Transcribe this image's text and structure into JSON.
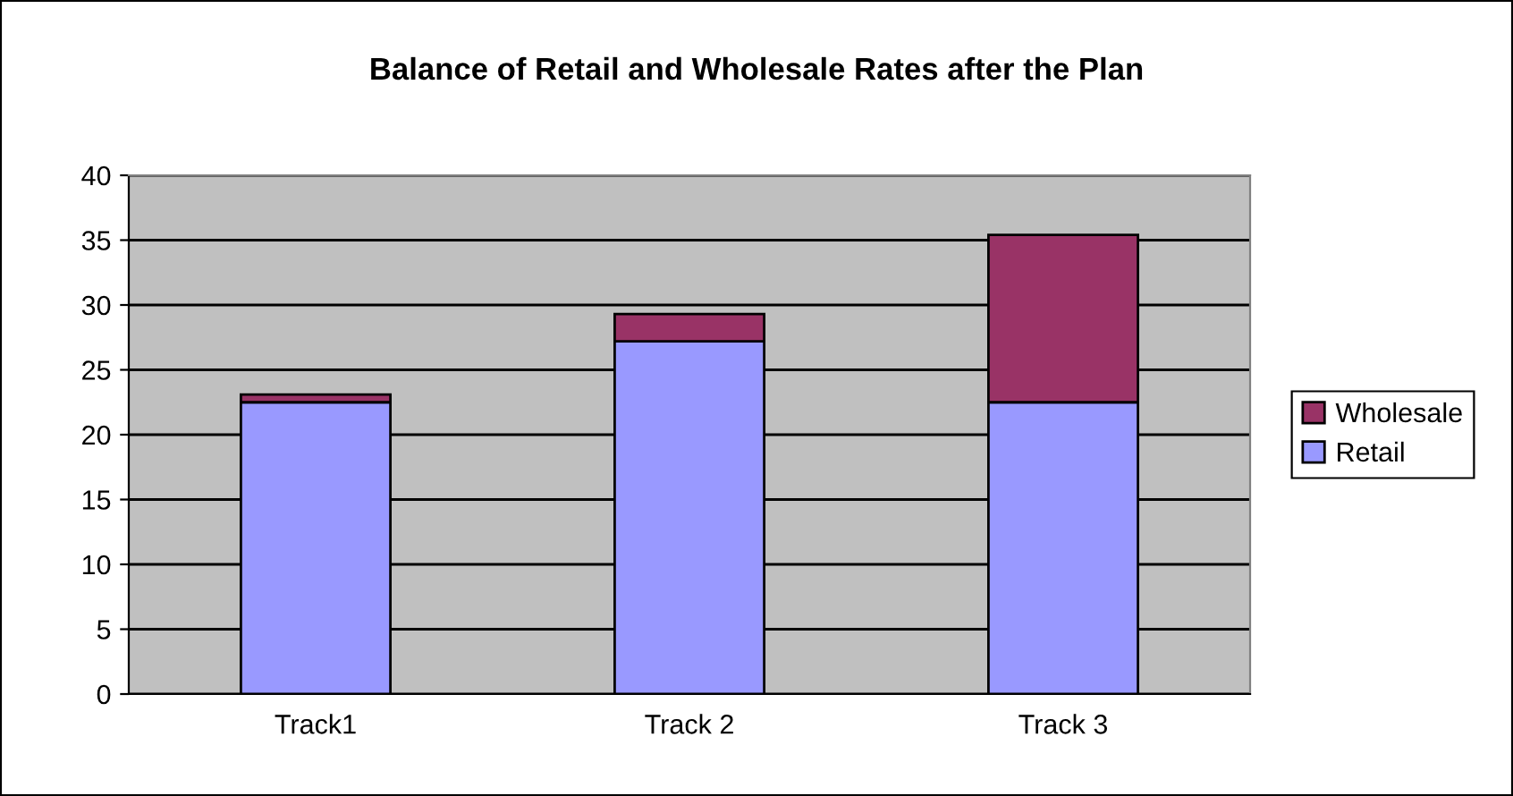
{
  "chart_data": {
    "type": "bar",
    "title": "Balance of Retail and Wholesale Rates after the Plan",
    "categories": [
      "Track1",
      "Track 2",
      "Track 3"
    ],
    "stacked": true,
    "series": [
      {
        "name": "Retail",
        "color": "#9999ff",
        "values": [
          22.5,
          27.2,
          22.5
        ]
      },
      {
        "name": "Wholesale",
        "color": "#993366",
        "values": [
          0.6,
          2.1,
          12.9
        ]
      }
    ],
    "ylim": [
      0,
      40
    ],
    "yticks": [
      0,
      5,
      10,
      15,
      20,
      25,
      30,
      35,
      40
    ],
    "grid": "y",
    "legend": "right"
  }
}
